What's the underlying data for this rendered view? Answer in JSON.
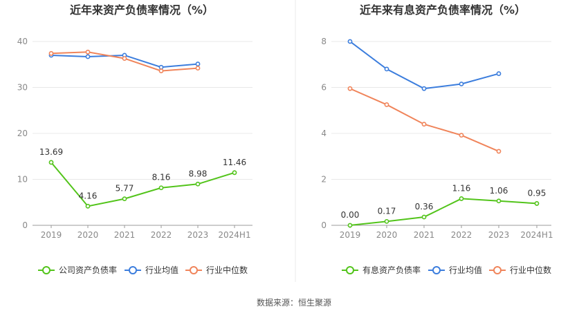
{
  "source_label": "数据来源：恒生聚源",
  "chart_data": [
    {
      "type": "line",
      "title": "近年来资产负债率情况（%）",
      "categories": [
        "2019",
        "2020",
        "2021",
        "2022",
        "2023",
        "2024H1"
      ],
      "ylim": [
        0,
        40
      ],
      "yticks": [
        "0",
        "10",
        "20",
        "30",
        "40"
      ],
      "grid": true,
      "legend_position": "bottom",
      "series": [
        {
          "name": "公司资产负债率",
          "color": "#52c41a",
          "values": [
            13.69,
            4.16,
            5.77,
            8.16,
            8.98,
            11.46
          ],
          "labels": [
            "13.69",
            "4.16",
            "5.77",
            "8.16",
            "8.98",
            "11.46"
          ]
        },
        {
          "name": "行业均值",
          "color": "#3b7ddd",
          "values": [
            37.0,
            36.7,
            37.0,
            34.4,
            35.1,
            null
          ]
        },
        {
          "name": "行业中位数",
          "color": "#f0845a",
          "values": [
            37.4,
            37.7,
            36.3,
            33.6,
            34.2,
            null
          ]
        }
      ]
    },
    {
      "type": "line",
      "title": "近年来有息资产负债率情况（%）",
      "categories": [
        "2019",
        "2020",
        "2021",
        "2022",
        "2023",
        "2024H1"
      ],
      "ylim": [
        0,
        8
      ],
      "yticks": [
        "0",
        "2",
        "4",
        "6",
        "8"
      ],
      "grid": true,
      "legend_position": "bottom",
      "series": [
        {
          "name": "有息资产负债率",
          "color": "#52c41a",
          "values": [
            0.0,
            0.17,
            0.36,
            1.16,
            1.06,
            0.95
          ],
          "labels": [
            "0.00",
            "0.17",
            "0.36",
            "1.16",
            "1.06",
            "0.95"
          ]
        },
        {
          "name": "行业均值",
          "color": "#3b7ddd",
          "values": [
            8.0,
            6.8,
            5.95,
            6.15,
            6.6,
            null
          ]
        },
        {
          "name": "行业中位数",
          "color": "#f0845a",
          "values": [
            5.95,
            5.25,
            4.4,
            3.92,
            3.22,
            null
          ]
        }
      ]
    }
  ]
}
